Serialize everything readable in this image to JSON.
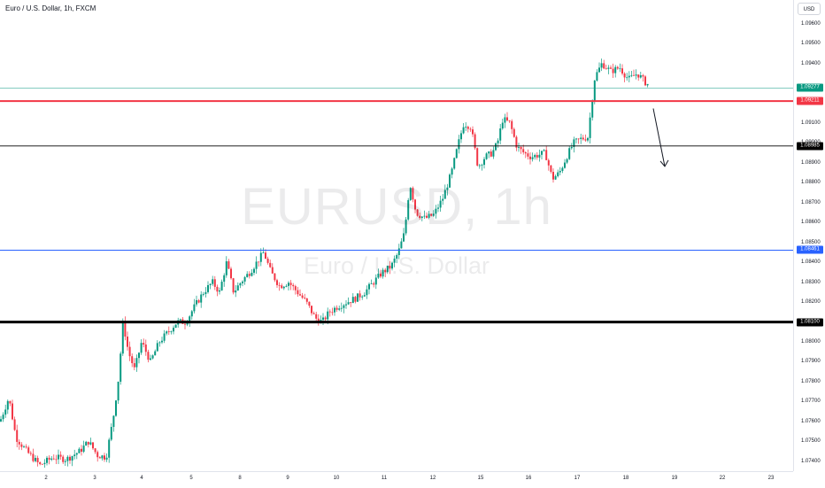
{
  "header": {
    "title": "Euro / U.S. Dollar, 1h, FXCM"
  },
  "watermark": {
    "symbol": "EURUSD, 1h",
    "name": "Euro / U.S. Dollar"
  },
  "price_axis": {
    "currency_button": "USD",
    "ticks": [
      "1.09600",
      "1.09500",
      "1.09400",
      "1.09100",
      "1.09000",
      "1.08900",
      "1.08800",
      "1.08700",
      "1.08600",
      "1.08500",
      "1.08400",
      "1.08300",
      "1.08200",
      "1.08000",
      "1.07900",
      "1.07800",
      "1.07700",
      "1.07600",
      "1.07500",
      "1.07400"
    ],
    "level_labels": [
      {
        "text": "1.09277",
        "price": 1.09277,
        "bg": "#089981",
        "fg": "#ffffff"
      },
      {
        "text": "1.09211",
        "price": 1.09211,
        "bg": "#f23645",
        "fg": "#ffffff"
      },
      {
        "text": "1.08985",
        "price": 1.08985,
        "bg": "#000000",
        "fg": "#ffffff"
      },
      {
        "text": "1.08461",
        "price": 1.08461,
        "bg": "#2962ff",
        "fg": "#ffffff"
      },
      {
        "text": "1.08100",
        "price": 1.081,
        "bg": "#000000",
        "fg": "#ffffff"
      }
    ]
  },
  "time_axis": {
    "labels": [
      "2",
      "3",
      "4",
      "5",
      "8",
      "9",
      "10",
      "11",
      "12",
      "15",
      "16",
      "17",
      "18",
      "19",
      "22",
      "23"
    ]
  },
  "levels": [
    {
      "name": "current-price-line",
      "price": 1.09277,
      "color": "#089981",
      "width": 0.6
    },
    {
      "name": "red-resistance-line",
      "price": 1.09211,
      "color": "#f23645",
      "width": 2
    },
    {
      "name": "black-level-line",
      "price": 1.08985,
      "color": "#000000",
      "width": 0.8
    },
    {
      "name": "blue-support-line",
      "price": 1.08461,
      "color": "#2962ff",
      "width": 1
    },
    {
      "name": "thick-support-line",
      "price": 1.081,
      "color": "#000000",
      "width": 3
    }
  ],
  "colors": {
    "up": "#089981",
    "down": "#f23645"
  },
  "chart_data": {
    "type": "candlestick",
    "price_range": [
      1.0735,
      1.0971
    ],
    "anchors": [
      [
        0,
        1.076
      ],
      [
        10,
        1.0772
      ],
      [
        18,
        1.0752
      ],
      [
        30,
        1.0745
      ],
      [
        45,
        1.0738
      ],
      [
        60,
        1.0742
      ],
      [
        75,
        1.0741
      ],
      [
        90,
        1.0745
      ],
      [
        100,
        1.075
      ],
      [
        110,
        1.0743
      ],
      [
        120,
        1.0742
      ],
      [
        128,
        1.0762
      ],
      [
        134,
        1.0782
      ],
      [
        139,
        1.081
      ],
      [
        145,
        1.0795
      ],
      [
        152,
        1.0786
      ],
      [
        160,
        1.08
      ],
      [
        170,
        1.079
      ],
      [
        180,
        1.08
      ],
      [
        190,
        1.0805
      ],
      [
        200,
        1.081
      ],
      [
        210,
        1.081
      ],
      [
        220,
        1.0818
      ],
      [
        230,
        1.0825
      ],
      [
        240,
        1.083
      ],
      [
        248,
        1.0825
      ],
      [
        256,
        1.084
      ],
      [
        264,
        1.0825
      ],
      [
        272,
        1.083
      ],
      [
        282,
        1.0835
      ],
      [
        290,
        1.084
      ],
      [
        298,
        1.0845
      ],
      [
        306,
        1.0835
      ],
      [
        316,
        1.0828
      ],
      [
        326,
        1.083
      ],
      [
        336,
        1.0825
      ],
      [
        346,
        1.082
      ],
      [
        356,
        1.0812
      ],
      [
        364,
        1.081
      ],
      [
        372,
        1.0815
      ],
      [
        382,
        1.0818
      ],
      [
        392,
        1.082
      ],
      [
        402,
        1.0822
      ],
      [
        412,
        1.0825
      ],
      [
        422,
        1.083
      ],
      [
        432,
        1.0835
      ],
      [
        442,
        1.0838
      ],
      [
        450,
        1.0845
      ],
      [
        457,
        1.0855
      ],
      [
        463,
        1.088
      ],
      [
        470,
        1.0865
      ],
      [
        480,
        1.0862
      ],
      [
        490,
        1.0864
      ],
      [
        500,
        1.0872
      ],
      [
        510,
        1.0885
      ],
      [
        518,
        1.09
      ],
      [
        524,
        1.091
      ],
      [
        532,
        1.0908
      ],
      [
        540,
        1.0888
      ],
      [
        548,
        1.0893
      ],
      [
        556,
        1.0895
      ],
      [
        562,
        1.09
      ],
      [
        568,
        1.0912
      ],
      [
        576,
        1.091
      ],
      [
        584,
        1.0898
      ],
      [
        592,
        1.0895
      ],
      [
        600,
        1.0893
      ],
      [
        608,
        1.0894
      ],
      [
        616,
        1.0895
      ],
      [
        624,
        1.0882
      ],
      [
        632,
        1.0885
      ],
      [
        640,
        1.0893
      ],
      [
        648,
        1.09
      ],
      [
        656,
        1.0902
      ],
      [
        664,
        1.0903
      ],
      [
        672,
        1.0933
      ],
      [
        680,
        1.094
      ],
      [
        690,
        1.0936
      ],
      [
        700,
        1.0938
      ],
      [
        710,
        1.0932
      ],
      [
        720,
        1.0935
      ],
      [
        730,
        1.093
      ],
      [
        734,
        1.0929
      ]
    ],
    "annotation": {
      "type": "arrow",
      "direction": "down",
      "from_price": 1.092,
      "to_price": 1.089
    }
  }
}
